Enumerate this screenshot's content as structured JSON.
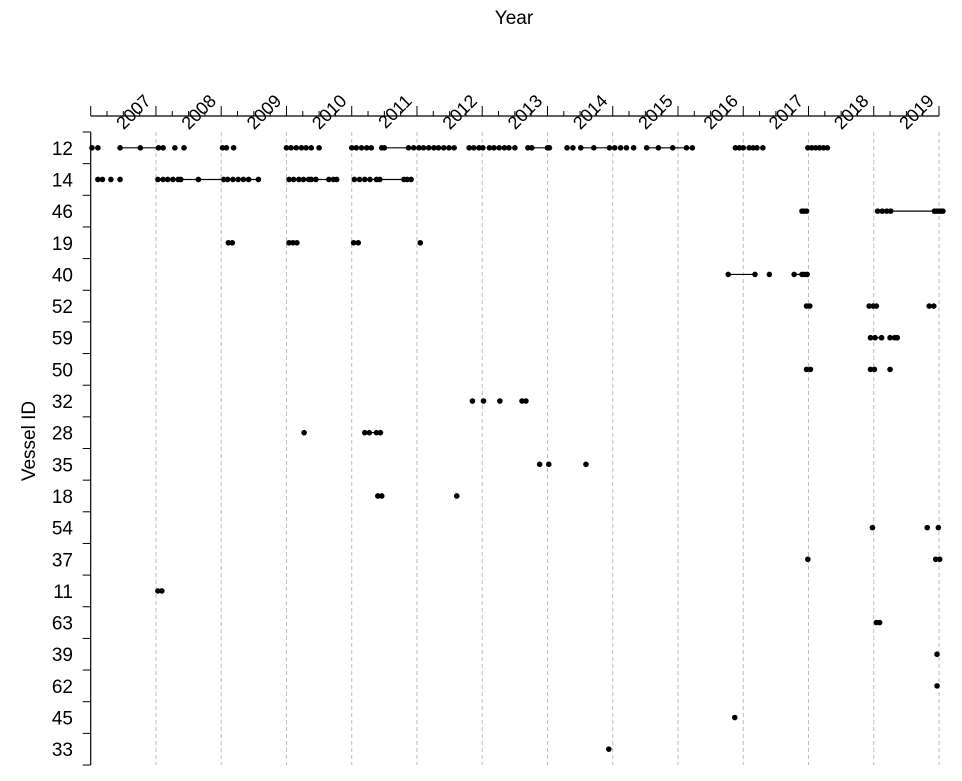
{
  "chart_data": {
    "type": "scatter",
    "subtype": "timeline-dot-plot",
    "title": "",
    "xlabel": "Year",
    "ylabel": "Vessel ID",
    "x_axis_position": "top",
    "xlim": [
      2006.0,
      2019.0
    ],
    "x_tick_labels": [
      "2007",
      "2008",
      "2009",
      "2010",
      "2011",
      "2012",
      "2013",
      "2014",
      "2015",
      "2016",
      "2017",
      "2018",
      "2019"
    ],
    "x_tick_values": [
      2007,
      2008,
      2009,
      2010,
      2011,
      2012,
      2013,
      2014,
      2015,
      2016,
      2017,
      2018,
      2019
    ],
    "x_minor_ticks_per_year": 4,
    "grid": {
      "vertical_dashed_at_years": true,
      "color": "#bdbdbd"
    },
    "categories": [
      "12",
      "14",
      "46",
      "19",
      "40",
      "52",
      "59",
      "50",
      "32",
      "28",
      "35",
      "18",
      "54",
      "37",
      "11",
      "63",
      "39",
      "62",
      "45",
      "33"
    ],
    "series": [
      {
        "name": "12",
        "values": [
          2006.02,
          2006.11,
          2006.45,
          2006.76,
          2007.04,
          2007.11,
          2007.29,
          2007.43,
          2008.02,
          2008.08,
          2008.19,
          2009.0,
          2009.07,
          2009.15,
          2009.23,
          2009.3,
          2009.38,
          2009.5,
          2010.0,
          2010.07,
          2010.15,
          2010.23,
          2010.3,
          2010.46,
          2010.5,
          2010.87,
          2010.95,
          2011.03,
          2011.1,
          2011.18,
          2011.26,
          2011.33,
          2011.41,
          2011.49,
          2011.57,
          2011.8,
          2011.87,
          2011.95,
          2012.01,
          2012.11,
          2012.18,
          2012.26,
          2012.34,
          2012.41,
          2012.5,
          2012.7,
          2012.76,
          2013.0,
          2013.03,
          2013.3,
          2013.39,
          2013.51,
          2013.71,
          2013.95,
          2014.03,
          2014.12,
          2014.21,
          2014.32,
          2014.52,
          2014.7,
          2014.92,
          2015.13,
          2015.22,
          2015.88,
          2015.94,
          2016.0,
          2016.09,
          2016.15,
          2016.21,
          2016.3,
          2016.99,
          2017.05,
          2017.11,
          2017.17,
          2017.23,
          2017.29
        ],
        "segments": [
          [
            2006.45,
            2007.04
          ],
          [
            2010.46,
            2011.1
          ],
          [
            2012.76,
            2013.03
          ],
          [
            2013.51,
            2013.95
          ],
          [
            2014.52,
            2015.22
          ]
        ]
      },
      {
        "name": "14",
        "values": [
          2006.11,
          2006.18,
          2006.31,
          2006.45,
          2007.03,
          2007.11,
          2007.18,
          2007.26,
          2007.34,
          2007.38,
          2007.65,
          2008.04,
          2008.1,
          2008.18,
          2008.26,
          2008.34,
          2008.42,
          2008.57,
          2009.04,
          2009.11,
          2009.19,
          2009.26,
          2009.34,
          2009.38,
          2009.45,
          2009.65,
          2009.72,
          2009.77,
          2010.04,
          2010.12,
          2010.2,
          2010.28,
          2010.38,
          2010.43,
          2010.8,
          2010.85,
          2010.91
        ],
        "segments": [
          [
            2007.03,
            2008.57
          ],
          [
            2009.04,
            2009.77
          ],
          [
            2010.04,
            2010.91
          ]
        ]
      },
      {
        "name": "46",
        "values": [
          2016.9,
          2016.93,
          2016.97,
          2018.06,
          2018.13,
          2018.2,
          2018.26,
          2018.93,
          2018.96,
          2019.0,
          2019.03,
          2019.06
        ],
        "segments": [
          [
            2018.06,
            2019.06
          ]
        ]
      },
      {
        "name": "19",
        "values": [
          2008.11,
          2008.17,
          2009.04,
          2009.1,
          2009.16,
          2010.03,
          2010.1,
          2011.05
        ]
      },
      {
        "name": "40",
        "values": [
          2015.77,
          2016.18,
          2016.4,
          2016.78,
          2016.9,
          2016.94,
          2016.98
        ],
        "segments": [
          [
            2015.77,
            2016.18
          ],
          [
            2016.78,
            2016.98
          ]
        ]
      },
      {
        "name": "52",
        "values": [
          2016.97,
          2017.02,
          2017.93,
          2017.99,
          2018.04,
          2018.85,
          2018.92
        ]
      },
      {
        "name": "59",
        "values": [
          2017.95,
          2018.02,
          2018.12,
          2018.25,
          2018.32,
          2018.36
        ],
        "segments": [
          [
            2017.95,
            2018.12
          ],
          [
            2018.25,
            2018.36
          ]
        ]
      },
      {
        "name": "50",
        "values": [
          2016.97,
          2017.03,
          2017.95,
          2018.01,
          2018.25
        ]
      },
      {
        "name": "32",
        "values": [
          2011.85,
          2012.02,
          2012.27,
          2012.61,
          2012.67
        ]
      },
      {
        "name": "28",
        "values": [
          2009.27,
          2010.2,
          2010.27,
          2010.38,
          2010.44
        ],
        "segments": [
          [
            2010.2,
            2010.44
          ]
        ]
      },
      {
        "name": "35",
        "values": [
          2012.88,
          2013.02,
          2013.59
        ]
      },
      {
        "name": "18",
        "values": [
          2010.4,
          2010.46,
          2011.61
        ]
      },
      {
        "name": "54",
        "values": [
          2017.98,
          2018.82,
          2018.99
        ]
      },
      {
        "name": "37",
        "values": [
          2016.99,
          2018.95,
          2019.01
        ]
      },
      {
        "name": "11",
        "values": [
          2007.03,
          2007.09
        ]
      },
      {
        "name": "63",
        "values": [
          2018.04,
          2018.09
        ]
      },
      {
        "name": "39",
        "values": [
          2018.97
        ]
      },
      {
        "name": "62",
        "values": [
          2018.97
        ]
      },
      {
        "name": "45",
        "values": [
          2015.87
        ]
      },
      {
        "name": "33",
        "values": [
          2013.94
        ]
      }
    ]
  }
}
